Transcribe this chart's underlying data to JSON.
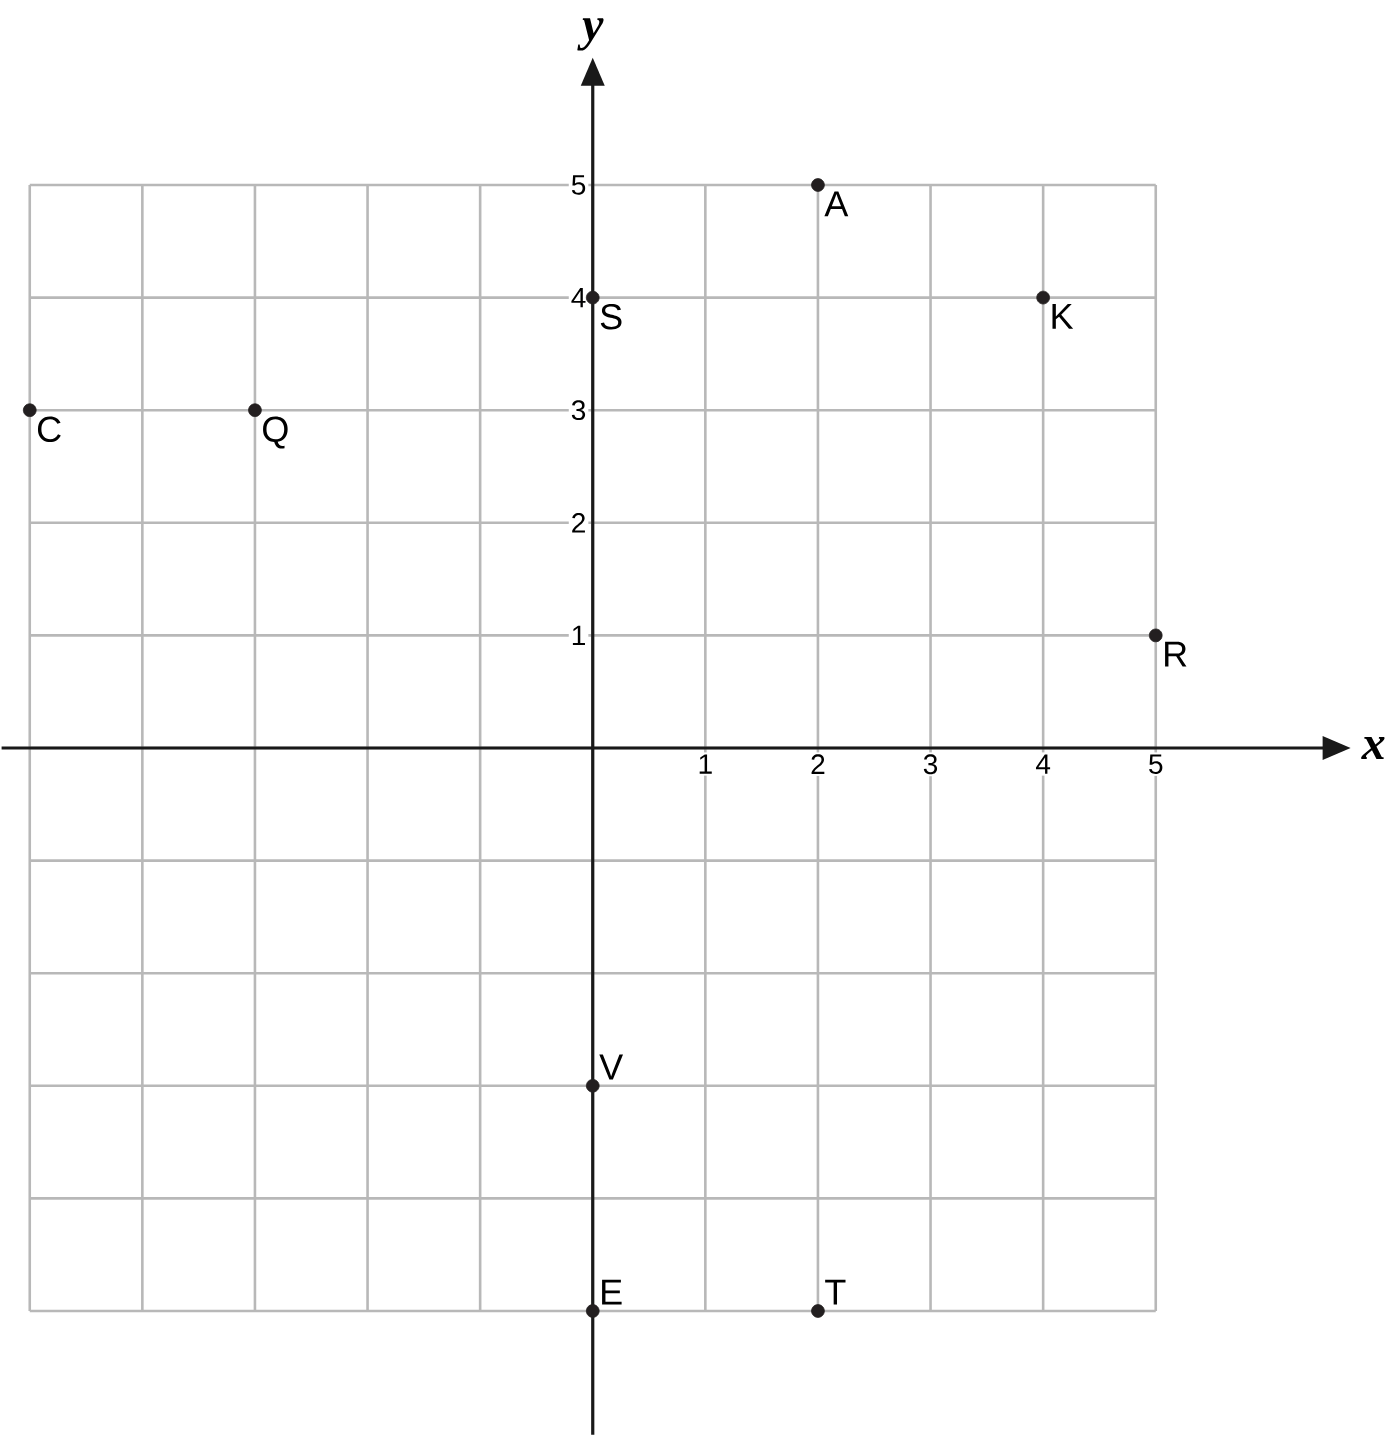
{
  "chart_data": {
    "type": "scatter",
    "xlabel": "x",
    "ylabel": "y",
    "x": [
      2,
      0,
      4,
      -5,
      -3,
      5,
      0,
      0,
      2
    ],
    "values": [
      5,
      4,
      4,
      3,
      3,
      1,
      -3,
      -5,
      -5
    ],
    "color": "#231f20",
    "grid": true,
    "xlim": [
      -5.25,
      6.5
    ],
    "ylim": [
      -6.1,
      5.9
    ],
    "xticks": [
      {
        "value": -5,
        "label": null
      },
      {
        "value": -4,
        "label": null
      },
      {
        "value": -3,
        "label": null
      },
      {
        "value": -2,
        "label": null
      },
      {
        "value": -1,
        "label": null
      },
      1,
      2,
      3,
      4,
      5
    ],
    "yticks": [
      {
        "value": -5,
        "label": null
      },
      {
        "value": -4,
        "label": null
      },
      {
        "value": -3,
        "label": null
      },
      {
        "value": -2,
        "label": null
      },
      {
        "value": -1,
        "label": null
      },
      1,
      2,
      3,
      4,
      5
    ],
    "annotations": [
      {
        "text": "A",
        "x": 2,
        "y": 5
      },
      {
        "text": "S",
        "x": 0,
        "y": 4
      },
      {
        "text": "K",
        "x": 4,
        "y": 4
      },
      {
        "text": "C",
        "x": -5,
        "y": 3
      },
      {
        "text": "Q",
        "x": -3,
        "y": 3
      },
      {
        "text": "R",
        "x": 5,
        "y": 1
      },
      {
        "text": "V",
        "x": 0,
        "y": -3
      },
      {
        "text": "E",
        "x": 0,
        "y": -5
      },
      {
        "text": "T",
        "x": 2,
        "y": -5
      }
    ]
  }
}
